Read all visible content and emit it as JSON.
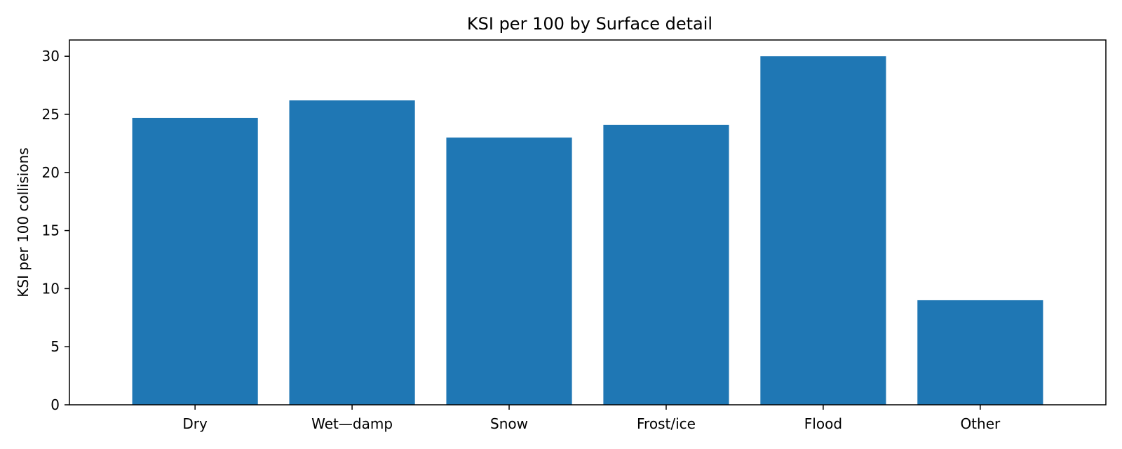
{
  "chart_data": {
    "type": "bar",
    "title": "KSI per 100 by Surface detail",
    "xlabel": "",
    "ylabel": "KSI per 100 collisions",
    "categories": [
      "Dry",
      "Wet—damp",
      "Snow",
      "Frost/ice",
      "Flood",
      "Other"
    ],
    "values": [
      24.7,
      26.2,
      23.0,
      24.1,
      30.0,
      9.0
    ],
    "ylim": [
      0,
      31.4
    ],
    "yticks": [
      0,
      5,
      10,
      15,
      20,
      25,
      30
    ],
    "grid": false,
    "legend": "none",
    "bar_color": "#1f77b4"
  }
}
